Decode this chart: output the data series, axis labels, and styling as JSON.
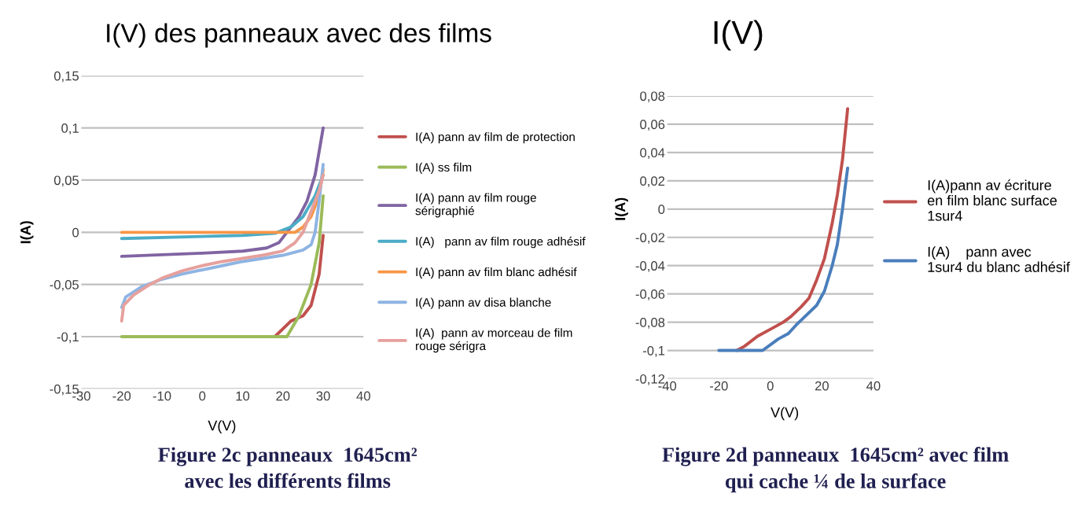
{
  "chart_data": [
    {
      "type": "line",
      "title": "I(V) des panneaux avec des films",
      "xlabel": "V(V)",
      "ylabel": "I(A)",
      "xlim": [
        -30,
        40
      ],
      "xticks": [
        -30,
        -20,
        -10,
        0,
        10,
        20,
        30,
        40
      ],
      "ylim": [
        -0.15,
        0.15
      ],
      "yticks": [
        {
          "value": -0.15,
          "label": "-0,15"
        },
        {
          "value": -0.1,
          "label": "-0,1"
        },
        {
          "value": -0.05,
          "label": "-0,05"
        },
        0,
        {
          "value": 0.05,
          "label": "0,05"
        },
        {
          "value": 0.1,
          "label": "0,1"
        },
        {
          "value": 0.15,
          "label": "0,15"
        }
      ],
      "grid": "y",
      "legend": "right",
      "marker": "none",
      "line_style": "solid",
      "annotations": [
        "Figure 2c panneaux  1645cm² avec les différents films"
      ],
      "series": [
        {
          "name": "I(A) pann av film de protection",
          "color": "#c0504d",
          "x": [
            18,
            22,
            25,
            27,
            29,
            30
          ],
          "values": [
            -0.1,
            -0.085,
            -0.08,
            -0.07,
            -0.04,
            -0.003
          ]
        },
        {
          "name": "I(A) ss film",
          "color": "#9bbb59",
          "x": [
            -20,
            0,
            21,
            24,
            27,
            29,
            30
          ],
          "values": [
            -0.1,
            -0.1,
            -0.1,
            -0.08,
            -0.05,
            -0.01,
            0.035
          ]
        },
        {
          "name": "I(A) pann av film rouge sérigraphié",
          "color": "#8064a2",
          "x": [
            -20,
            0,
            10,
            16,
            19,
            21,
            24,
            26,
            28,
            30
          ],
          "values": [
            -0.023,
            -0.02,
            -0.018,
            -0.015,
            -0.01,
            0,
            0.015,
            0.03,
            0.055,
            0.1
          ]
        },
        {
          "name": "I(A)   pann av film rouge adhésif",
          "color": "#4bacc6",
          "x": [
            -20,
            0,
            10,
            18,
            22,
            25,
            28,
            30
          ],
          "values": [
            -0.006,
            -0.004,
            -0.003,
            -0.001,
            0.005,
            0.015,
            0.035,
            0.055
          ]
        },
        {
          "name": "I(A) pann av film blanc adhésif",
          "color": "#f79646",
          "x": [
            -20,
            0,
            23,
            25,
            27,
            29,
            30
          ],
          "values": [
            0,
            0,
            0,
            0.005,
            0.015,
            0.035,
            0.06
          ]
        },
        {
          "name": "I(A) pann av disa blanche",
          "color": "#8eb4e3",
          "x": [
            -20,
            -19,
            -15,
            -10,
            -5,
            0,
            5,
            10,
            15,
            20,
            25,
            27,
            28,
            29,
            30
          ],
          "values": [
            -0.072,
            -0.062,
            -0.052,
            -0.045,
            -0.04,
            -0.036,
            -0.032,
            -0.028,
            -0.025,
            -0.022,
            -0.017,
            -0.012,
            0.0,
            0.03,
            0.065
          ]
        },
        {
          "name": "I(A)  pann av morceau de film rouge sérigra",
          "color": "#e6a09d",
          "x": [
            -20,
            -19.5,
            -17,
            -13,
            -10,
            -5,
            0,
            5,
            10,
            15,
            20,
            23,
            25,
            27,
            29,
            30
          ],
          "values": [
            -0.085,
            -0.07,
            -0.06,
            -0.05,
            -0.044,
            -0.037,
            -0.032,
            -0.028,
            -0.025,
            -0.022,
            -0.018,
            -0.01,
            0.0,
            0.02,
            0.04,
            0.055
          ]
        }
      ]
    },
    {
      "type": "line",
      "title": "I(V)",
      "xlabel": "V(V)",
      "ylabel": "I(A)",
      "xlim": [
        -40,
        40
      ],
      "xticks": [
        -40,
        -20,
        0,
        20,
        40
      ],
      "ylim": [
        -0.12,
        0.08
      ],
      "yticks": [
        {
          "value": -0.12,
          "label": "-0,12"
        },
        {
          "value": -0.1,
          "label": "-0,1"
        },
        {
          "value": -0.08,
          "label": "-0,08"
        },
        {
          "value": -0.06,
          "label": "-0,06"
        },
        {
          "value": -0.04,
          "label": "-0,04"
        },
        {
          "value": -0.02,
          "label": "-0,02"
        },
        0,
        {
          "value": 0.02,
          "label": "0,02"
        },
        {
          "value": 0.04,
          "label": "0,04"
        },
        {
          "value": 0.06,
          "label": "0,06"
        },
        {
          "value": 0.08,
          "label": "0,08"
        }
      ],
      "grid": "y",
      "legend": "right",
      "marker": "none",
      "line_style": "solid",
      "annotations": [
        "Figure 2d panneaux  1645cm² avec film qui cache ¼ de la surface"
      ],
      "series": [
        {
          "name": "I(A)pann av écriture en film blanc surface 1sur4",
          "color": "#c0504d",
          "x": [
            -13,
            -10,
            -5,
            0,
            5,
            8,
            12,
            15,
            18,
            21,
            24,
            26,
            28,
            30
          ],
          "values": [
            -0.1,
            -0.097,
            -0.09,
            -0.085,
            -0.08,
            -0.076,
            -0.069,
            -0.063,
            -0.05,
            -0.035,
            -0.01,
            0.01,
            0.035,
            0.071
          ]
        },
        {
          "name": "I(A)    pann avec 1sur4 du blanc adhésif",
          "color": "#4a7ebb",
          "x": [
            -20,
            -3,
            0,
            3,
            7,
            10,
            14,
            18,
            21,
            24,
            26,
            28,
            29,
            30
          ],
          "values": [
            -0.1,
            -0.1,
            -0.096,
            -0.092,
            -0.088,
            -0.082,
            -0.075,
            -0.068,
            -0.058,
            -0.04,
            -0.025,
            0.0,
            0.015,
            0.029
          ]
        }
      ]
    }
  ]
}
